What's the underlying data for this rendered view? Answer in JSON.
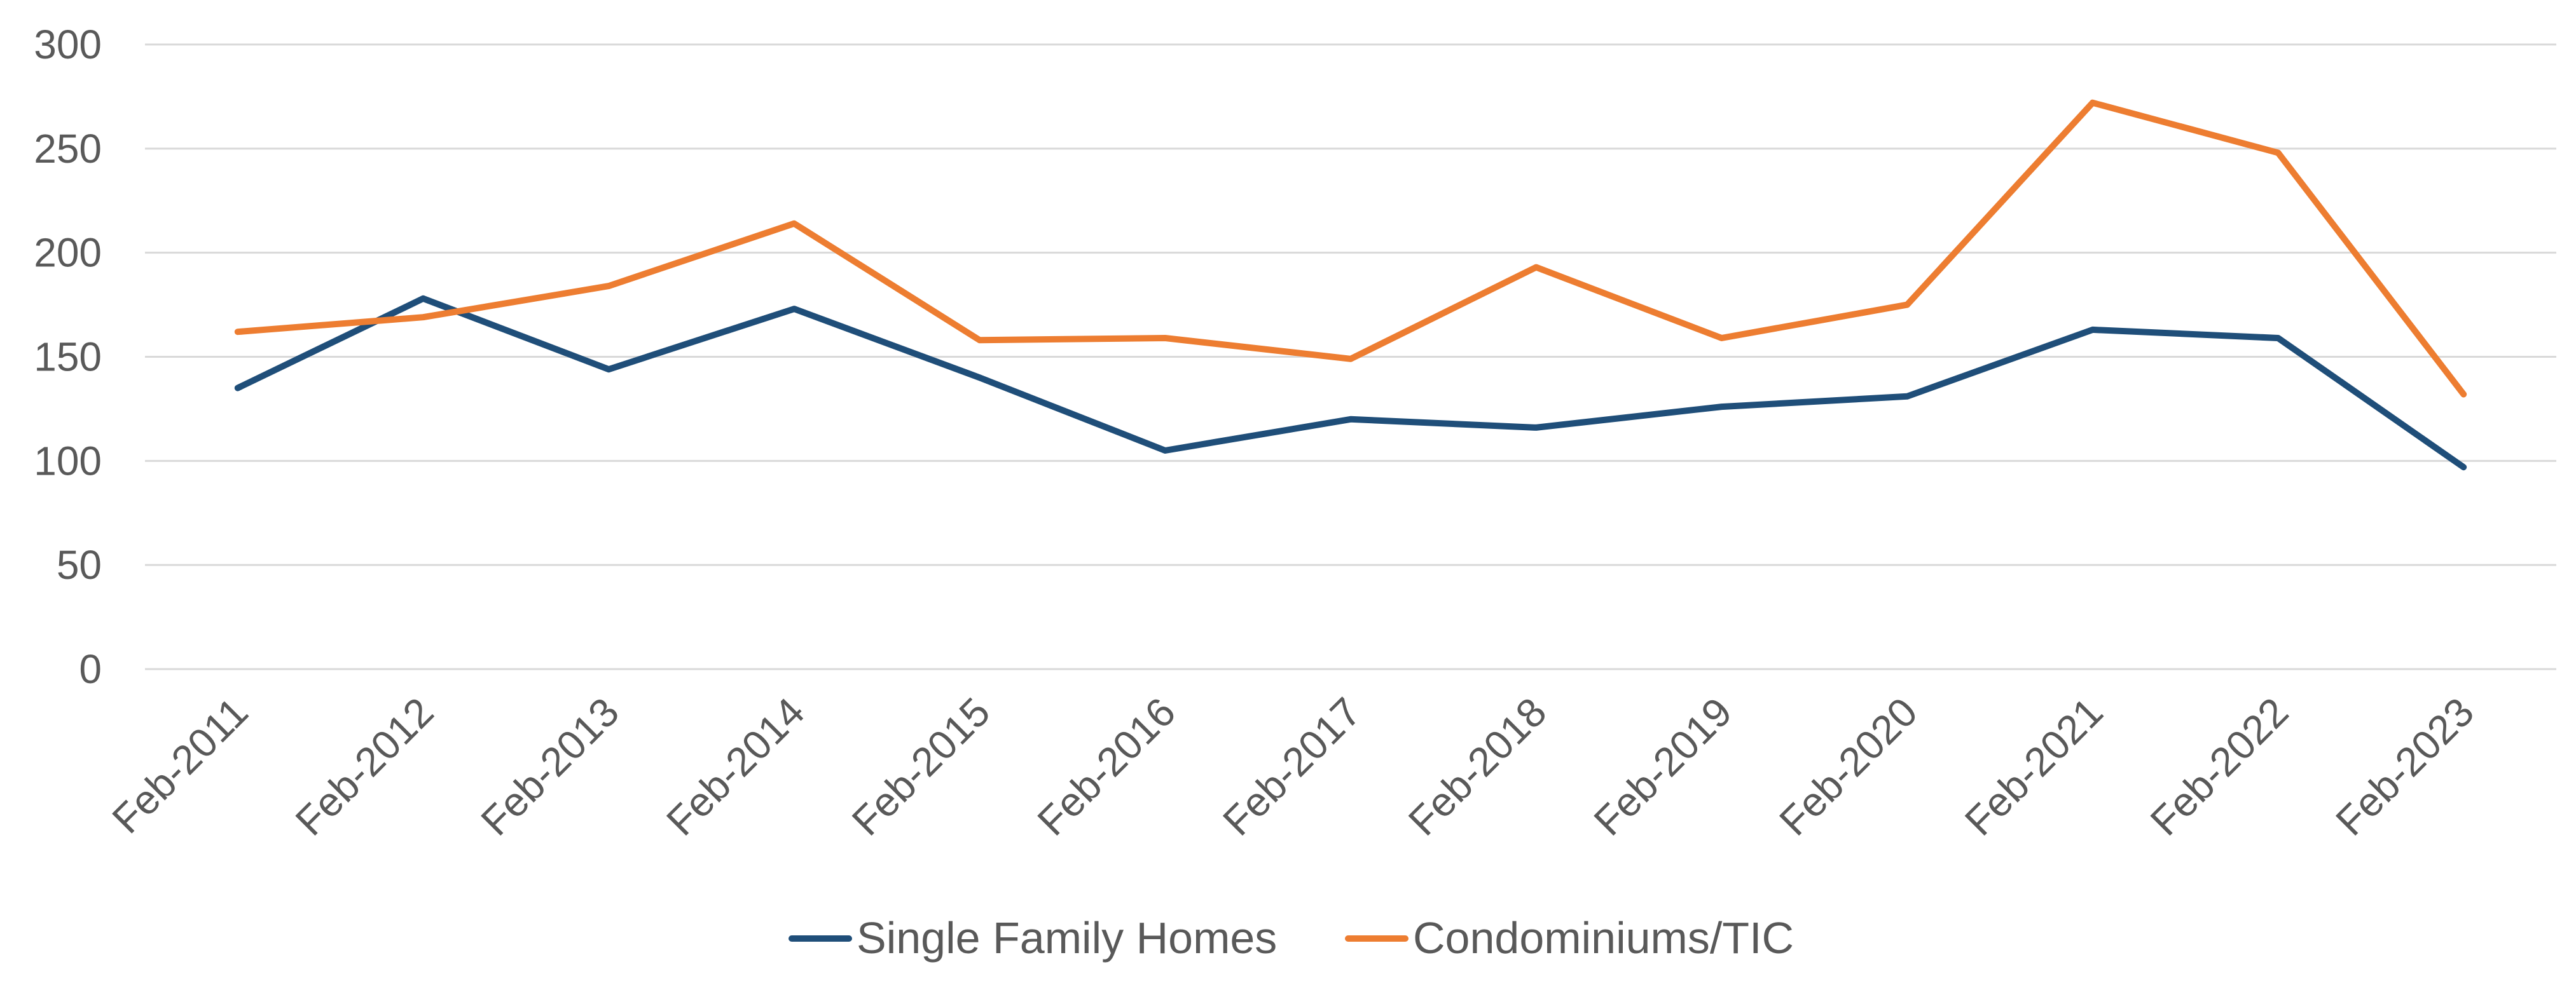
{
  "chart_data": {
    "type": "line",
    "categories": [
      "Feb-2011",
      "Feb-2012",
      "Feb-2013",
      "Feb-2014",
      "Feb-2015",
      "Feb-2016",
      "Feb-2017",
      "Feb-2018",
      "Feb-2019",
      "Feb-2020",
      "Feb-2021",
      "Feb-2022",
      "Feb-2023"
    ],
    "series": [
      {
        "name": "Single Family Homes",
        "color": "#1f4e79",
        "values": [
          135,
          178,
          144,
          173,
          140,
          105,
          120,
          116,
          126,
          131,
          163,
          159,
          97
        ]
      },
      {
        "name": "Condominiums/TIC",
        "color": "#ed7d31",
        "values": [
          162,
          169,
          184,
          214,
          158,
          159,
          149,
          193,
          159,
          175,
          272,
          248,
          132
        ]
      }
    ],
    "yticks": [
      "0",
      "50",
      "100",
      "150",
      "200",
      "250",
      "300"
    ],
    "ylim": [
      0,
      300
    ],
    "grid": true,
    "legend_position": "bottom"
  }
}
